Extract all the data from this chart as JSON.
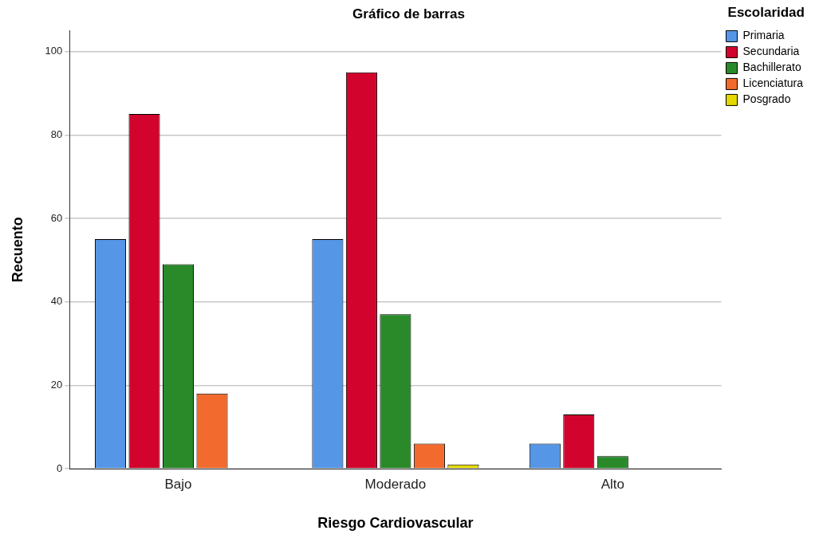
{
  "chart_data": {
    "type": "bar",
    "title": "Gráfico de barras",
    "xlabel": "Riesgo Cardiovascular",
    "ylabel": "Recuento",
    "legend_title": "Escolaridad",
    "legend": "top right",
    "grid": "y",
    "categories": [
      "Bajo",
      "Moderado",
      "Alto"
    ],
    "series": [
      {
        "name": "Primaria",
        "color": "#5596e6",
        "values": [
          55,
          55,
          6
        ]
      },
      {
        "name": "Secundaria",
        "color": "#d2042d",
        "values": [
          85,
          95,
          13
        ]
      },
      {
        "name": "Bachillerato",
        "color": "#2a8a2a",
        "values": [
          49,
          37,
          3
        ]
      },
      {
        "name": "Licenciatura",
        "color": "#f26a2e",
        "values": [
          18,
          6,
          null
        ]
      },
      {
        "name": "Posgrado",
        "color": "#e5d800",
        "values": [
          null,
          1,
          null
        ]
      }
    ],
    "ylim": [
      0,
      105
    ],
    "yticks": [
      0,
      20,
      40,
      60,
      80,
      100
    ]
  }
}
